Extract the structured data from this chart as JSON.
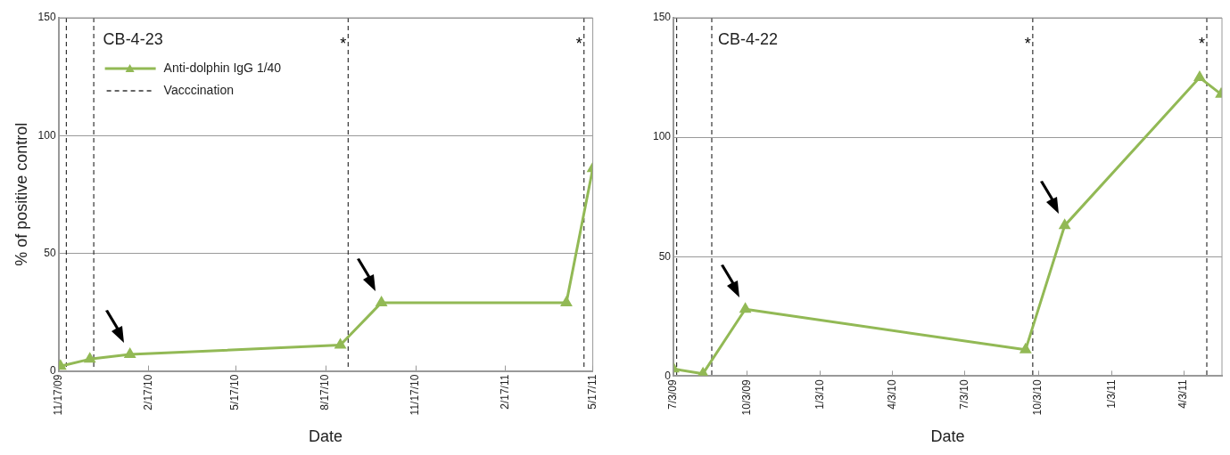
{
  "chart_data": [
    {
      "type": "line",
      "title": "CB-4-23",
      "xlabel": "Date",
      "ylabel": "% of positive control",
      "legend": "top left",
      "marker": "triangle",
      "grid": "y",
      "line_style": "solid",
      "xlim": [
        "2009-11-17",
        "2011-05-17"
      ],
      "xticks": [
        {
          "value": "2009-11-17",
          "label": "11/17/09"
        },
        {
          "value": "2010-02-17",
          "label": "2/17/10"
        },
        {
          "value": "2010-05-17",
          "label": "5/17/10"
        },
        {
          "value": "2010-08-17",
          "label": "8/17/10"
        },
        {
          "value": "2010-11-17",
          "label": "11/17/10"
        },
        {
          "value": "2011-02-17",
          "label": "2/17/11"
        },
        {
          "value": "2011-05-17",
          "label": "5/17/11"
        }
      ],
      "ylim": [
        0,
        150
      ],
      "yticks": [
        0,
        50,
        100,
        150
      ],
      "series": [
        {
          "name": "Anti-dolphin IgG 1/40",
          "color": "#92b955",
          "x": [
            "2009-11-19",
            "2009-12-19",
            "2010-01-29",
            "2010-09-01",
            "2010-10-13",
            "2011-04-20",
            "2011-05-17"
          ],
          "values": [
            2,
            5,
            7,
            11,
            29,
            29,
            86
          ]
        }
      ],
      "ref_lines": [
        {
          "axis": "x",
          "value": "2009-11-25",
          "color": "#333333",
          "line_style": "dashed"
        },
        {
          "axis": "x",
          "value": "2009-12-23",
          "color": "#333333",
          "line_style": "dashed"
        },
        {
          "axis": "x",
          "value": "2010-09-09",
          "label": "*",
          "color": "#333333",
          "line_style": "dashed"
        },
        {
          "axis": "x",
          "value": "2011-05-08",
          "label": "*",
          "color": "#333333",
          "line_style": "dashed"
        }
      ],
      "annotations": [
        "Vacccination"
      ]
    },
    {
      "type": "line",
      "title": "CB-4-22",
      "xlabel": "Date",
      "marker": "triangle",
      "grid": "y",
      "line_style": "solid",
      "xlim": [
        "2009-07-03",
        "2011-05-21"
      ],
      "xticks": [
        {
          "value": "2009-07-03",
          "label": "7/3/09"
        },
        {
          "value": "2009-10-03",
          "label": "10/3/09"
        },
        {
          "value": "2010-01-03",
          "label": "1/3/10"
        },
        {
          "value": "2010-04-03",
          "label": "4/3/10"
        },
        {
          "value": "2010-07-03",
          "label": "7/3/10"
        },
        {
          "value": "2010-10-03",
          "label": "10/3/10"
        },
        {
          "value": "2011-01-03",
          "label": "1/3/11"
        },
        {
          "value": "2011-04-03",
          "label": "4/3/11"
        }
      ],
      "ylim": [
        0,
        150
      ],
      "yticks": [
        0,
        50,
        100,
        150
      ],
      "series": [
        {
          "color": "#92b955",
          "x": [
            "2009-07-03",
            "2009-08-09",
            "2009-10-01",
            "2010-09-17",
            "2010-11-05",
            "2011-04-23",
            "2011-05-20"
          ],
          "values": [
            3,
            1,
            28,
            11,
            63,
            125,
            118
          ]
        }
      ],
      "ref_lines": [
        {
          "axis": "x",
          "value": "2009-07-07",
          "color": "#333333",
          "line_style": "dashed"
        },
        {
          "axis": "x",
          "value": "2009-08-20",
          "color": "#333333",
          "line_style": "dashed"
        },
        {
          "axis": "x",
          "value": "2010-09-26",
          "label": "*",
          "color": "#333333",
          "line_style": "dashed"
        },
        {
          "axis": "x",
          "value": "2011-05-02",
          "label": "*",
          "color": "#333333",
          "line_style": "dashed"
        }
      ]
    }
  ]
}
